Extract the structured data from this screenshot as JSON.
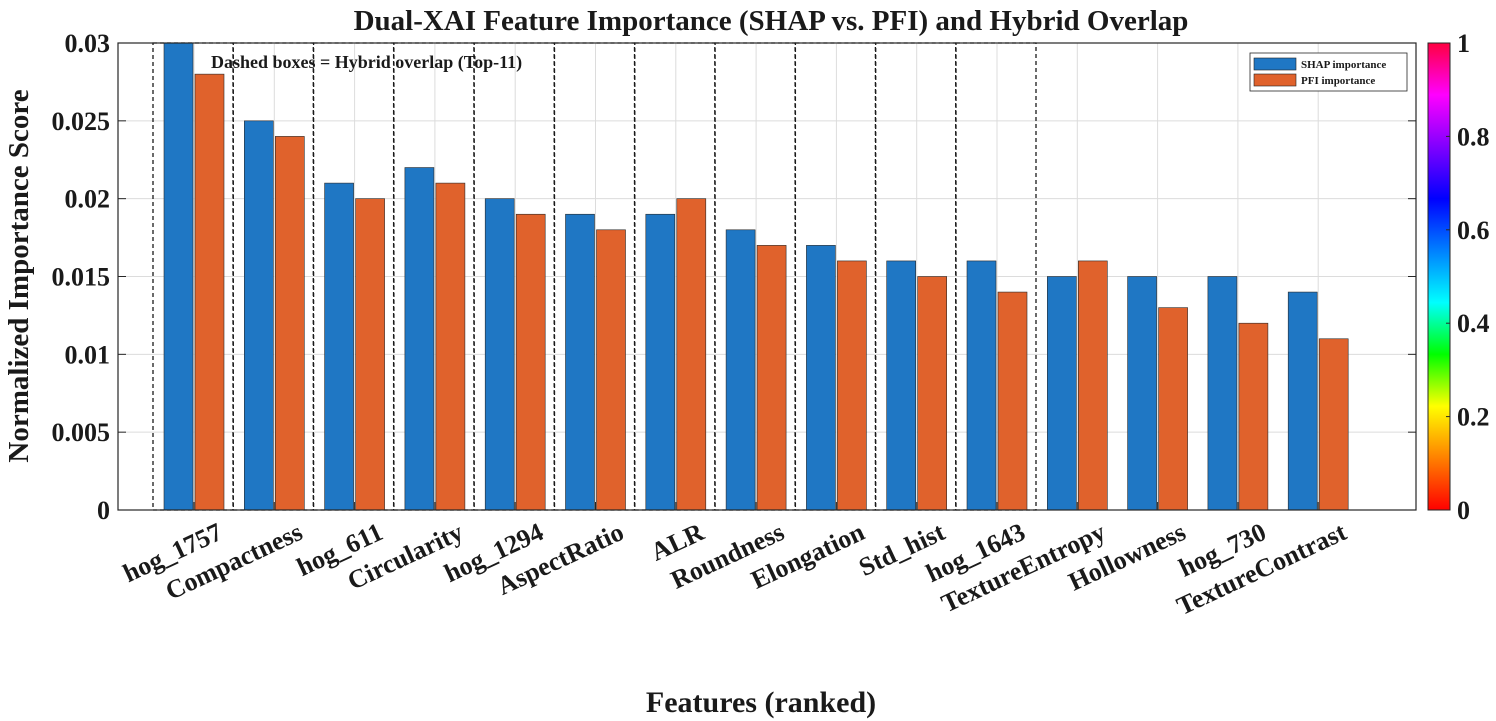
{
  "chart_data": {
    "type": "bar",
    "title": "Dual-XAI Feature Importance (SHAP vs. PFI) and Hybrid Overlap",
    "xlabel": "Features (ranked)",
    "ylabel": "Normalized Importance Score",
    "ylim": [
      0,
      0.03
    ],
    "yticks": [
      0,
      0.005,
      0.01,
      0.015,
      0.02,
      0.025,
      0.03
    ],
    "ytick_labels": [
      "0",
      "0.005",
      "0.01",
      "0.015",
      "0.02",
      "0.025",
      "0.03"
    ],
    "grid": true,
    "categories": [
      "hog_1757",
      "Compactness",
      "hog_611",
      "Circularity",
      "hog_1294",
      "AspectRatio",
      "ALR",
      "Roundness",
      "Elongation",
      "Std_hist",
      "hog_1643",
      "TextureEntropy",
      "Hollowness",
      "hog_730",
      "TextureContrast"
    ],
    "series": [
      {
        "name": "SHAP importance",
        "color": "#1f77c4",
        "values": [
          0.03,
          0.025,
          0.021,
          0.022,
          0.02,
          0.019,
          0.019,
          0.018,
          0.017,
          0.016,
          0.016,
          0.015,
          0.015,
          0.015,
          0.014
        ]
      },
      {
        "name": "PFI importance",
        "color": "#e0622c",
        "values": [
          0.028,
          0.024,
          0.02,
          0.021,
          0.019,
          0.018,
          0.02,
          0.017,
          0.016,
          0.015,
          0.014,
          0.016,
          0.013,
          0.012,
          0.011
        ]
      }
    ],
    "legend": {
      "position": "top-right",
      "entries": [
        "SHAP importance",
        "PFI importance"
      ]
    },
    "annotation": "Dashed boxes = Hybrid overlap (Top-11)",
    "hybrid_overlap_count": 11,
    "colorbar": {
      "range": [
        0,
        1
      ],
      "tick_labels": [
        "0",
        "0.2",
        "0.4",
        "0.6",
        "0.8",
        "1"
      ],
      "colors": [
        "#ff0000",
        "#ff8000",
        "#ffff00",
        "#00ff00",
        "#00ffff",
        "#0080ff",
        "#0000ff",
        "#8000ff",
        "#ff00ff",
        "#ff0040"
      ]
    }
  }
}
